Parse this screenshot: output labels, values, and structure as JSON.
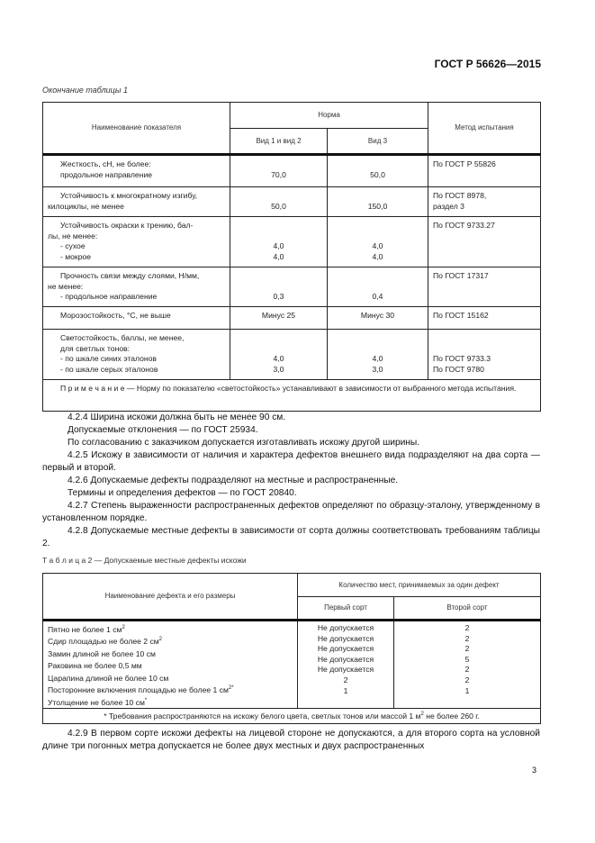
{
  "header": {
    "standard": "ГОСТ Р 56626—2015"
  },
  "table1": {
    "caption": "Окончание таблицы 1",
    "headers": {
      "name": "Наименование показателя",
      "norm": "Норма",
      "type12": "Вид 1 и вид 2",
      "type3": "Вид 3",
      "method": "Метод испытания"
    },
    "rows": [
      {
        "name": [
          "Жесткость, сН, не более:",
          "продольное направление"
        ],
        "v1": [
          "",
          "70,0"
        ],
        "v2": [
          "",
          "50,0"
        ],
        "method": [
          "По ГОСТ Р 55826"
        ]
      },
      {
        "name": [
          "Устойчивость к многократному изгибу,",
          "килоциклы, не менее"
        ],
        "v1": [
          "",
          "50,0"
        ],
        "v2": [
          "",
          "150,0"
        ],
        "method": [
          "По ГОСТ 8978,",
          "раздел 3"
        ]
      },
      {
        "name": [
          "Устойчивость окраски к трению, бал-",
          "лы, не менее:",
          "- сухое",
          "- мокрое"
        ],
        "v1": [
          "",
          "",
          "4,0",
          "4,0"
        ],
        "v2": [
          "",
          "",
          "4,0",
          "4,0"
        ],
        "method": [
          "По ГОСТ 9733.27"
        ]
      },
      {
        "name": [
          "Прочность связи между слоями, Н/мм,",
          "не менее:",
          "- продольное направление"
        ],
        "v1": [
          "",
          "",
          "0,3"
        ],
        "v2": [
          "",
          "",
          "0,4"
        ],
        "method": [
          "По ГОСТ 17317"
        ]
      },
      {
        "name": [
          "Морозостойкость, °С, не выше"
        ],
        "v1": [
          "Минус 25"
        ],
        "v2": [
          "Минус 30"
        ],
        "method": [
          "По ГОСТ 15162"
        ]
      },
      {
        "name": [
          "Светостойкость, баллы, не менее,",
          "для светлых тонов:",
          "- по шкале синих эталонов",
          "- по шкале серых эталонов"
        ],
        "v1": [
          "",
          "",
          "4,0",
          "3,0"
        ],
        "v2": [
          "",
          "",
          "4,0",
          "3,0"
        ],
        "method": [
          "",
          "",
          "По ГОСТ 9733.3",
          "По ГОСТ 9780"
        ]
      }
    ],
    "note_label": "П р и м е ч а н и е",
    "note": " — Норму по показателю «светостойкость» устанавливают в зависимости от выбранного метода испытания."
  },
  "paragraphs": [
    {
      "text": "4.2.4  Ширина искожи должна быть не менее 90 см.",
      "indent": true
    },
    {
      "text": "Допускаемые отклонения — по ГОСТ 25934.",
      "indent": "pad"
    },
    {
      "text": "По согласованию с заказчиком допускается изготавливать искожу другой ширины.",
      "indent": "pad"
    },
    {
      "text": "4.2.5  Искожу в зависимости от наличия и характера дефектов внешнего вида подразделяют на два сорта — первый и второй.",
      "indent": true
    },
    {
      "text": "4.2.6  Допускаемые дефекты подразделяют на местные и распространенные.",
      "indent": true
    },
    {
      "text": "Термины и определения дефектов — по ГОСТ 20840.",
      "indent": "pad"
    },
    {
      "text": "4.2.7 Степень выраженности распространенных дефектов определяют по образцу-эталону, утвержденному в установленном порядке.",
      "indent": true
    },
    {
      "text": "4.2.8  Допускаемые местные дефекты в зависимости от сорта должны соответствовать требованиям таблицы 2.",
      "indent": true
    }
  ],
  "table2": {
    "caption": "Т а б л и ц а  2 — Допускаемые местные дефекты искожи",
    "headers": {
      "name": "Наименование дефекта и его размеры",
      "count": "Количество мест, принимаемых за один дефект",
      "first": "Первый сорт",
      "second": "Второй сорт"
    },
    "rows": [
      {
        "name": "Пятно не более 1 см",
        "sup": "2",
        "first": "Не допускается",
        "second": "2"
      },
      {
        "name": "Сдир площадью не более 2 см",
        "sup": "2",
        "first": "Не допускается",
        "second": "2"
      },
      {
        "name": "Замин длиной не более 10 см",
        "sup": "",
        "first": "Не допускается",
        "second": "2"
      },
      {
        "name": "Раковина не более 0,5 мм",
        "sup": "",
        "first": "Не допускается",
        "second": "5"
      },
      {
        "name": "Царапина длиной не более 10 см",
        "sup": "",
        "first": "Не допускается",
        "second": "2"
      },
      {
        "name": "Посторонние включения площадью не более 1 см",
        "sup": "2*",
        "first": "2",
        "second": "2"
      },
      {
        "name": "Утолщение не более 10 см",
        "sup": "*",
        "first": "1",
        "second": "1"
      }
    ],
    "footnote_a": "*  Требования распространяются на искожу белого цвета, светлых тонов или массой 1 м",
    "footnote_sup": "2",
    "footnote_b": " не более 260 г."
  },
  "closing_paragraph": "4.2.9  В первом сорте искожи дефекты на лицевой стороне не допускаются, а для второго сорта на условной длине три погонных метра допускается не более двух местных и двух распространенных",
  "page_number": "3"
}
